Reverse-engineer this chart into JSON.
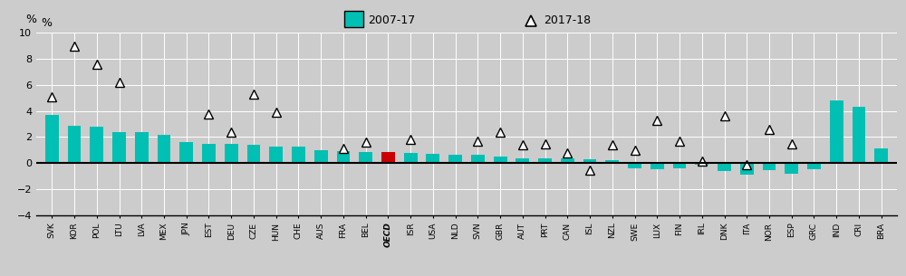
{
  "categories": [
    "SVK",
    "KOR",
    "POL",
    "LTU",
    "LVA",
    "MEX",
    "JPN",
    "EST",
    "DEU",
    "CZE",
    "HUN",
    "CHE",
    "AUS",
    "FRA",
    "BEL",
    "OECD",
    "ISR",
    "USA",
    "NLD",
    "SVN",
    "GBR",
    "AUT",
    "PRT",
    "CAN",
    "ISL",
    "NZL",
    "SWE",
    "LUX",
    "FIN",
    "IRL",
    "DNK",
    "ITA",
    "NOR",
    "ESP",
    "GRC",
    "IND",
    "CRI",
    "BRA"
  ],
  "bar_values": [
    3.7,
    2.9,
    2.8,
    2.35,
    2.35,
    2.2,
    1.6,
    1.5,
    1.45,
    1.4,
    1.3,
    1.25,
    1.0,
    0.9,
    0.85,
    0.85,
    0.8,
    0.7,
    0.65,
    0.65,
    0.5,
    0.4,
    0.35,
    0.35,
    0.3,
    0.25,
    -0.4,
    -0.5,
    -0.4,
    -0.15,
    -0.6,
    -0.9,
    -0.55,
    -0.8,
    -0.5,
    4.8,
    4.3,
    1.1
  ],
  "triangle_values": [
    5.1,
    9.0,
    7.6,
    6.2,
    null,
    null,
    null,
    3.8,
    2.4,
    5.3,
    3.9,
    null,
    null,
    1.1,
    1.6,
    null,
    1.8,
    null,
    null,
    1.7,
    2.4,
    1.4,
    1.5,
    0.75,
    -0.55,
    1.4,
    1.0,
    3.25,
    1.7,
    0.15,
    3.6,
    -0.15,
    2.6,
    1.5,
    null,
    null,
    null,
    null
  ],
  "bar_colors": [
    "#00bfb3",
    "#00bfb3",
    "#00bfb3",
    "#00bfb3",
    "#00bfb3",
    "#00bfb3",
    "#00bfb3",
    "#00bfb3",
    "#00bfb3",
    "#00bfb3",
    "#00bfb3",
    "#00bfb3",
    "#00bfb3",
    "#00bfb3",
    "#00bfb3",
    "#cc0000",
    "#00bfb3",
    "#00bfb3",
    "#00bfb3",
    "#00bfb3",
    "#00bfb3",
    "#00bfb3",
    "#00bfb3",
    "#00bfb3",
    "#00bfb3",
    "#00bfb3",
    "#00bfb3",
    "#00bfb3",
    "#00bfb3",
    "#00bfb3",
    "#00bfb3",
    "#00bfb3",
    "#00bfb3",
    "#00bfb3",
    "#00bfb3",
    "#00bfb3",
    "#00bfb3",
    "#00bfb3"
  ],
  "ylim": [
    -4,
    10
  ],
  "yticks": [
    -4,
    -2,
    0,
    2,
    4,
    6,
    8,
    10
  ],
  "plot_bg": "#cccccc",
  "header_bg": "#c0c0c0",
  "fig_bg": "#cccccc",
  "legend_bar_label": "2007-17",
  "legend_triangle_label": "2017-18",
  "bar_color_main": "#00bfb3",
  "bar_color_oecd": "#cc0000",
  "triangle_color": "white",
  "triangle_edge_color": "black",
  "ylabel": "%"
}
